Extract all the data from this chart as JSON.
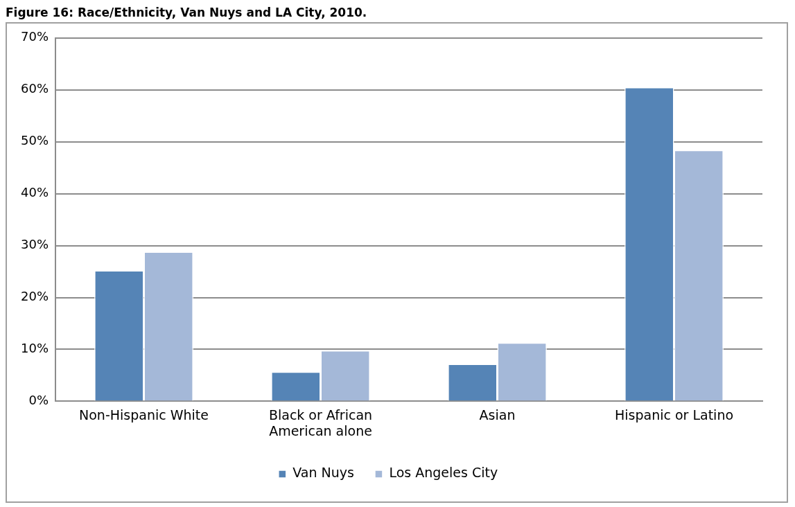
{
  "chart_data": {
    "type": "bar",
    "title": "Figure 16: Race/Ethnicity, Van Nuys and LA City, 2010.",
    "categories": [
      "Non-Hispanic White",
      [
        "Black or African",
        "American alone"
      ],
      "Asian",
      "Hispanic or Latino"
    ],
    "series": [
      {
        "name": "Van Nuys",
        "color": "#5584b6",
        "values": [
          25.2,
          5.7,
          7.2,
          60.5
        ]
      },
      {
        "name": "Los Angeles City",
        "color": "#a4b8d8",
        "values": [
          28.8,
          9.8,
          11.3,
          48.4
        ]
      }
    ],
    "ylim": [
      0,
      70
    ],
    "yticks": [
      {
        "value": 0,
        "label": "0%"
      },
      {
        "value": 10,
        "label": "10%"
      },
      {
        "value": 20,
        "label": "20%"
      },
      {
        "value": 30,
        "label": "30%"
      },
      {
        "value": 40,
        "label": "40%"
      },
      {
        "value": 50,
        "label": "50%"
      },
      {
        "value": 60,
        "label": "60%"
      },
      {
        "value": 70,
        "label": "70%"
      }
    ],
    "grid": "y",
    "legend": "bottom"
  }
}
